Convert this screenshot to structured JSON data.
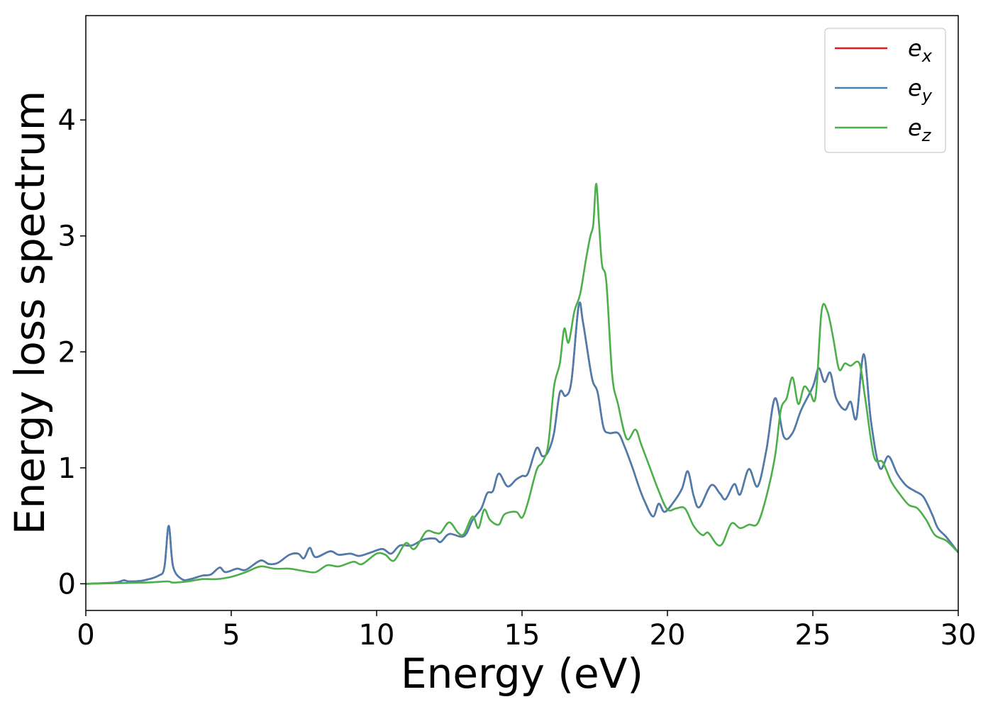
{
  "chart_data": {
    "type": "line",
    "xlabel": "Energy (eV)",
    "ylabel": "Energy loss spectrum",
    "xlim": [
      0,
      30
    ],
    "ylim": [
      -0.23,
      4.9
    ],
    "x_ticks": [
      0,
      5,
      10,
      15,
      20,
      25,
      30
    ],
    "y_ticks": [
      0,
      1,
      2,
      3,
      4
    ],
    "grid": false,
    "legend_position": "top-right",
    "series": [
      {
        "name": "e",
        "subscript": "x",
        "color": "#e41a1c",
        "points": [
          [
            0,
            0
          ],
          [
            1,
            0.01
          ],
          [
            1.3,
            0.03
          ],
          [
            1.5,
            0.02
          ],
          [
            2,
            0.03
          ],
          [
            2.5,
            0.07
          ],
          [
            2.7,
            0.14
          ],
          [
            2.85,
            0.5
          ],
          [
            3.0,
            0.15
          ],
          [
            3.3,
            0.04
          ],
          [
            3.6,
            0.04
          ],
          [
            4,
            0.07
          ],
          [
            4.3,
            0.08
          ],
          [
            4.6,
            0.14
          ],
          [
            4.8,
            0.1
          ],
          [
            5.2,
            0.13
          ],
          [
            5.5,
            0.12
          ],
          [
            6,
            0.2
          ],
          [
            6.3,
            0.17
          ],
          [
            6.6,
            0.18
          ],
          [
            7,
            0.25
          ],
          [
            7.3,
            0.26
          ],
          [
            7.5,
            0.22
          ],
          [
            7.7,
            0.31
          ],
          [
            7.9,
            0.23
          ],
          [
            8.4,
            0.28
          ],
          [
            8.7,
            0.25
          ],
          [
            9.1,
            0.26
          ],
          [
            9.4,
            0.24
          ],
          [
            9.8,
            0.27
          ],
          [
            10.2,
            0.3
          ],
          [
            10.5,
            0.26
          ],
          [
            10.8,
            0.33
          ],
          [
            11.2,
            0.33
          ],
          [
            11.6,
            0.38
          ],
          [
            12,
            0.39
          ],
          [
            12.2,
            0.36
          ],
          [
            12.5,
            0.43
          ],
          [
            13,
            0.41
          ],
          [
            13.3,
            0.55
          ],
          [
            13.6,
            0.65
          ],
          [
            13.8,
            0.78
          ],
          [
            14,
            0.8
          ],
          [
            14.2,
            0.95
          ],
          [
            14.5,
            0.84
          ],
          [
            14.8,
            0.9
          ],
          [
            15,
            0.93
          ],
          [
            15.2,
            0.95
          ],
          [
            15.5,
            1.17
          ],
          [
            15.7,
            1.1
          ],
          [
            15.9,
            1.14
          ],
          [
            16.1,
            1.3
          ],
          [
            16.3,
            1.65
          ],
          [
            16.5,
            1.62
          ],
          [
            16.7,
            1.75
          ],
          [
            16.95,
            2.4
          ],
          [
            17.1,
            2.25
          ],
          [
            17.4,
            1.78
          ],
          [
            17.6,
            1.65
          ],
          [
            17.8,
            1.35
          ],
          [
            18,
            1.3
          ],
          [
            18.3,
            1.3
          ],
          [
            18.5,
            1.2
          ],
          [
            18.8,
            1.0
          ],
          [
            19,
            0.85
          ],
          [
            19.2,
            0.72
          ],
          [
            19.5,
            0.58
          ],
          [
            19.7,
            0.69
          ],
          [
            19.9,
            0.62
          ],
          [
            20.2,
            0.7
          ],
          [
            20.5,
            0.82
          ],
          [
            20.7,
            0.97
          ],
          [
            20.9,
            0.76
          ],
          [
            21.1,
            0.66
          ],
          [
            21.5,
            0.85
          ],
          [
            21.8,
            0.78
          ],
          [
            22,
            0.73
          ],
          [
            22.3,
            0.86
          ],
          [
            22.5,
            0.77
          ],
          [
            22.8,
            0.99
          ],
          [
            23.1,
            0.84
          ],
          [
            23.4,
            1.15
          ],
          [
            23.7,
            1.6
          ],
          [
            24,
            1.27
          ],
          [
            24.3,
            1.3
          ],
          [
            24.6,
            1.5
          ],
          [
            25,
            1.7
          ],
          [
            25.2,
            1.86
          ],
          [
            25.4,
            1.74
          ],
          [
            25.6,
            1.82
          ],
          [
            25.8,
            1.6
          ],
          [
            26.1,
            1.5
          ],
          [
            26.3,
            1.57
          ],
          [
            26.5,
            1.43
          ],
          [
            26.75,
            1.98
          ],
          [
            27,
            1.4
          ],
          [
            27.3,
            1.0
          ],
          [
            27.6,
            1.1
          ],
          [
            27.9,
            0.95
          ],
          [
            28.2,
            0.85
          ],
          [
            28.5,
            0.8
          ],
          [
            28.8,
            0.75
          ],
          [
            29.1,
            0.6
          ],
          [
            29.3,
            0.48
          ],
          [
            29.6,
            0.4
          ],
          [
            30,
            0.27
          ]
        ]
      },
      {
        "name": "e",
        "subscript": "y",
        "color": "#4a7eb0",
        "points": [
          [
            0,
            0
          ],
          [
            1,
            0.01
          ],
          [
            1.3,
            0.03
          ],
          [
            1.5,
            0.02
          ],
          [
            2,
            0.03
          ],
          [
            2.5,
            0.07
          ],
          [
            2.7,
            0.14
          ],
          [
            2.85,
            0.5
          ],
          [
            3.0,
            0.15
          ],
          [
            3.3,
            0.04
          ],
          [
            3.6,
            0.04
          ],
          [
            4,
            0.07
          ],
          [
            4.3,
            0.08
          ],
          [
            4.6,
            0.14
          ],
          [
            4.8,
            0.1
          ],
          [
            5.2,
            0.13
          ],
          [
            5.5,
            0.12
          ],
          [
            6,
            0.2
          ],
          [
            6.3,
            0.17
          ],
          [
            6.6,
            0.18
          ],
          [
            7,
            0.25
          ],
          [
            7.3,
            0.26
          ],
          [
            7.5,
            0.22
          ],
          [
            7.7,
            0.31
          ],
          [
            7.9,
            0.23
          ],
          [
            8.4,
            0.28
          ],
          [
            8.7,
            0.25
          ],
          [
            9.1,
            0.26
          ],
          [
            9.4,
            0.24
          ],
          [
            9.8,
            0.27
          ],
          [
            10.2,
            0.3
          ],
          [
            10.5,
            0.26
          ],
          [
            10.8,
            0.33
          ],
          [
            11.2,
            0.33
          ],
          [
            11.6,
            0.38
          ],
          [
            12,
            0.39
          ],
          [
            12.2,
            0.36
          ],
          [
            12.5,
            0.43
          ],
          [
            13,
            0.41
          ],
          [
            13.3,
            0.55
          ],
          [
            13.6,
            0.65
          ],
          [
            13.8,
            0.78
          ],
          [
            14,
            0.8
          ],
          [
            14.2,
            0.95
          ],
          [
            14.5,
            0.84
          ],
          [
            14.8,
            0.9
          ],
          [
            15,
            0.93
          ],
          [
            15.2,
            0.95
          ],
          [
            15.5,
            1.17
          ],
          [
            15.7,
            1.1
          ],
          [
            15.9,
            1.14
          ],
          [
            16.1,
            1.3
          ],
          [
            16.3,
            1.65
          ],
          [
            16.5,
            1.62
          ],
          [
            16.7,
            1.75
          ],
          [
            16.95,
            2.4
          ],
          [
            17.1,
            2.25
          ],
          [
            17.4,
            1.78
          ],
          [
            17.6,
            1.65
          ],
          [
            17.8,
            1.35
          ],
          [
            18,
            1.3
          ],
          [
            18.3,
            1.3
          ],
          [
            18.5,
            1.2
          ],
          [
            18.8,
            1.0
          ],
          [
            19,
            0.85
          ],
          [
            19.2,
            0.72
          ],
          [
            19.5,
            0.58
          ],
          [
            19.7,
            0.69
          ],
          [
            19.9,
            0.62
          ],
          [
            20.2,
            0.7
          ],
          [
            20.5,
            0.82
          ],
          [
            20.7,
            0.97
          ],
          [
            20.9,
            0.76
          ],
          [
            21.1,
            0.66
          ],
          [
            21.5,
            0.85
          ],
          [
            21.8,
            0.78
          ],
          [
            22,
            0.73
          ],
          [
            22.3,
            0.86
          ],
          [
            22.5,
            0.77
          ],
          [
            22.8,
            0.99
          ],
          [
            23.1,
            0.84
          ],
          [
            23.4,
            1.15
          ],
          [
            23.7,
            1.6
          ],
          [
            24,
            1.27
          ],
          [
            24.3,
            1.3
          ],
          [
            24.6,
            1.5
          ],
          [
            25,
            1.7
          ],
          [
            25.2,
            1.86
          ],
          [
            25.4,
            1.74
          ],
          [
            25.6,
            1.82
          ],
          [
            25.8,
            1.6
          ],
          [
            26.1,
            1.5
          ],
          [
            26.3,
            1.57
          ],
          [
            26.5,
            1.43
          ],
          [
            26.75,
            1.98
          ],
          [
            27,
            1.4
          ],
          [
            27.3,
            1.0
          ],
          [
            27.6,
            1.1
          ],
          [
            27.9,
            0.95
          ],
          [
            28.2,
            0.85
          ],
          [
            28.5,
            0.8
          ],
          [
            28.8,
            0.75
          ],
          [
            29.1,
            0.6
          ],
          [
            29.3,
            0.48
          ],
          [
            29.6,
            0.4
          ],
          [
            30,
            0.27
          ]
        ]
      },
      {
        "name": "e",
        "subscript": "z",
        "color": "#4daf4a",
        "points": [
          [
            0,
            0
          ],
          [
            2,
            0.01
          ],
          [
            2.8,
            0.02
          ],
          [
            3,
            0.01
          ],
          [
            3.5,
            0.02
          ],
          [
            4,
            0.04
          ],
          [
            4.5,
            0.04
          ],
          [
            5,
            0.06
          ],
          [
            5.5,
            0.1
          ],
          [
            6,
            0.15
          ],
          [
            6.5,
            0.13
          ],
          [
            7,
            0.13
          ],
          [
            7.5,
            0.11
          ],
          [
            7.9,
            0.1
          ],
          [
            8.3,
            0.16
          ],
          [
            8.7,
            0.15
          ],
          [
            9.2,
            0.19
          ],
          [
            9.5,
            0.17
          ],
          [
            10,
            0.26
          ],
          [
            10.3,
            0.25
          ],
          [
            10.6,
            0.2
          ],
          [
            11,
            0.35
          ],
          [
            11.3,
            0.3
          ],
          [
            11.7,
            0.45
          ],
          [
            12,
            0.44
          ],
          [
            12.2,
            0.44
          ],
          [
            12.5,
            0.53
          ],
          [
            12.8,
            0.44
          ],
          [
            13,
            0.43
          ],
          [
            13.3,
            0.58
          ],
          [
            13.5,
            0.48
          ],
          [
            13.7,
            0.64
          ],
          [
            13.9,
            0.55
          ],
          [
            14.2,
            0.51
          ],
          [
            14.4,
            0.6
          ],
          [
            14.8,
            0.62
          ],
          [
            15,
            0.57
          ],
          [
            15.2,
            0.7
          ],
          [
            15.5,
            0.98
          ],
          [
            15.7,
            1.05
          ],
          [
            15.9,
            1.2
          ],
          [
            16.1,
            1.7
          ],
          [
            16.3,
            1.9
          ],
          [
            16.45,
            2.2
          ],
          [
            16.6,
            2.08
          ],
          [
            16.8,
            2.35
          ],
          [
            17,
            2.5
          ],
          [
            17.2,
            2.8
          ],
          [
            17.35,
            3.0
          ],
          [
            17.45,
            3.1
          ],
          [
            17.55,
            3.45
          ],
          [
            17.65,
            3.1
          ],
          [
            17.75,
            2.75
          ],
          [
            17.9,
            2.6
          ],
          [
            18.1,
            1.8
          ],
          [
            18.3,
            1.55
          ],
          [
            18.6,
            1.25
          ],
          [
            18.9,
            1.33
          ],
          [
            19.1,
            1.2
          ],
          [
            19.4,
            1.0
          ],
          [
            19.7,
            0.8
          ],
          [
            20,
            0.64
          ],
          [
            20.3,
            0.65
          ],
          [
            20.6,
            0.65
          ],
          [
            20.9,
            0.5
          ],
          [
            21.2,
            0.42
          ],
          [
            21.4,
            0.44
          ],
          [
            21.7,
            0.34
          ],
          [
            21.9,
            0.35
          ],
          [
            22.2,
            0.52
          ],
          [
            22.5,
            0.48
          ],
          [
            22.8,
            0.51
          ],
          [
            23.1,
            0.52
          ],
          [
            23.4,
            0.75
          ],
          [
            23.7,
            1.1
          ],
          [
            23.9,
            1.5
          ],
          [
            24.1,
            1.6
          ],
          [
            24.3,
            1.78
          ],
          [
            24.5,
            1.55
          ],
          [
            24.7,
            1.7
          ],
          [
            24.9,
            1.65
          ],
          [
            25.1,
            1.62
          ],
          [
            25.3,
            2.35
          ],
          [
            25.5,
            2.35
          ],
          [
            25.7,
            2.12
          ],
          [
            25.9,
            1.85
          ],
          [
            26.1,
            1.9
          ],
          [
            26.3,
            1.88
          ],
          [
            26.6,
            1.9
          ],
          [
            26.8,
            1.6
          ],
          [
            27.1,
            1.1
          ],
          [
            27.4,
            1.05
          ],
          [
            27.7,
            0.88
          ],
          [
            28,
            0.77
          ],
          [
            28.3,
            0.68
          ],
          [
            28.6,
            0.65
          ],
          [
            28.9,
            0.55
          ],
          [
            29.2,
            0.42
          ],
          [
            29.6,
            0.37
          ],
          [
            30,
            0.27
          ]
        ]
      }
    ]
  }
}
